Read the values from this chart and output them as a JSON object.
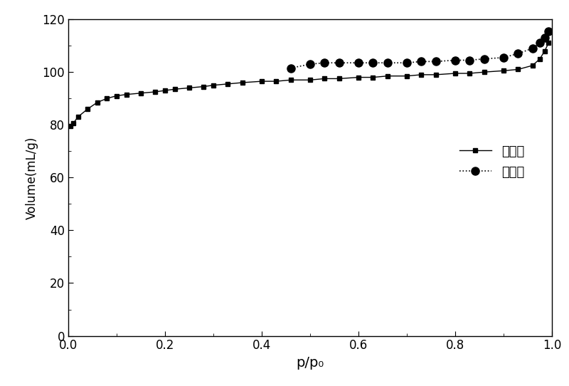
{
  "adsorption_x": [
    0.005,
    0.01,
    0.02,
    0.04,
    0.06,
    0.08,
    0.1,
    0.12,
    0.15,
    0.18,
    0.2,
    0.22,
    0.25,
    0.28,
    0.3,
    0.33,
    0.36,
    0.4,
    0.43,
    0.46,
    0.5,
    0.53,
    0.56,
    0.6,
    0.63,
    0.66,
    0.7,
    0.73,
    0.76,
    0.8,
    0.83,
    0.86,
    0.9,
    0.93,
    0.96,
    0.975,
    0.985,
    0.993
  ],
  "adsorption_y": [
    79.5,
    80.5,
    83.0,
    86.0,
    88.5,
    90.0,
    91.0,
    91.5,
    92.0,
    92.5,
    93.0,
    93.5,
    94.0,
    94.5,
    95.0,
    95.5,
    96.0,
    96.5,
    96.5,
    97.0,
    97.0,
    97.5,
    97.5,
    98.0,
    98.0,
    98.5,
    98.5,
    99.0,
    99.0,
    99.5,
    99.5,
    100.0,
    100.5,
    101.0,
    102.5,
    105.0,
    108.0,
    111.0
  ],
  "desorption_x": [
    0.46,
    0.5,
    0.53,
    0.56,
    0.6,
    0.63,
    0.66,
    0.7,
    0.73,
    0.76,
    0.8,
    0.83,
    0.86,
    0.9,
    0.93,
    0.96,
    0.975,
    0.985,
    0.993
  ],
  "desorption_y": [
    101.5,
    103.0,
    103.5,
    103.5,
    103.5,
    103.5,
    103.5,
    103.5,
    104.0,
    104.0,
    104.5,
    104.5,
    105.0,
    105.5,
    107.0,
    109.0,
    111.0,
    113.0,
    115.5
  ],
  "xlabel": "p/p₀",
  "ylabel": "Volume(mL/g)",
  "xlim": [
    0.0,
    1.0
  ],
  "ylim": [
    0,
    120
  ],
  "yticks": [
    0,
    20,
    40,
    60,
    80,
    100,
    120
  ],
  "xticks": [
    0.0,
    0.2,
    0.4,
    0.6,
    0.8,
    1.0
  ],
  "legend_adsorption": "吸附线",
  "legend_desorption": "脱附线",
  "line_color": "#000000",
  "background_color": "#ffffff"
}
